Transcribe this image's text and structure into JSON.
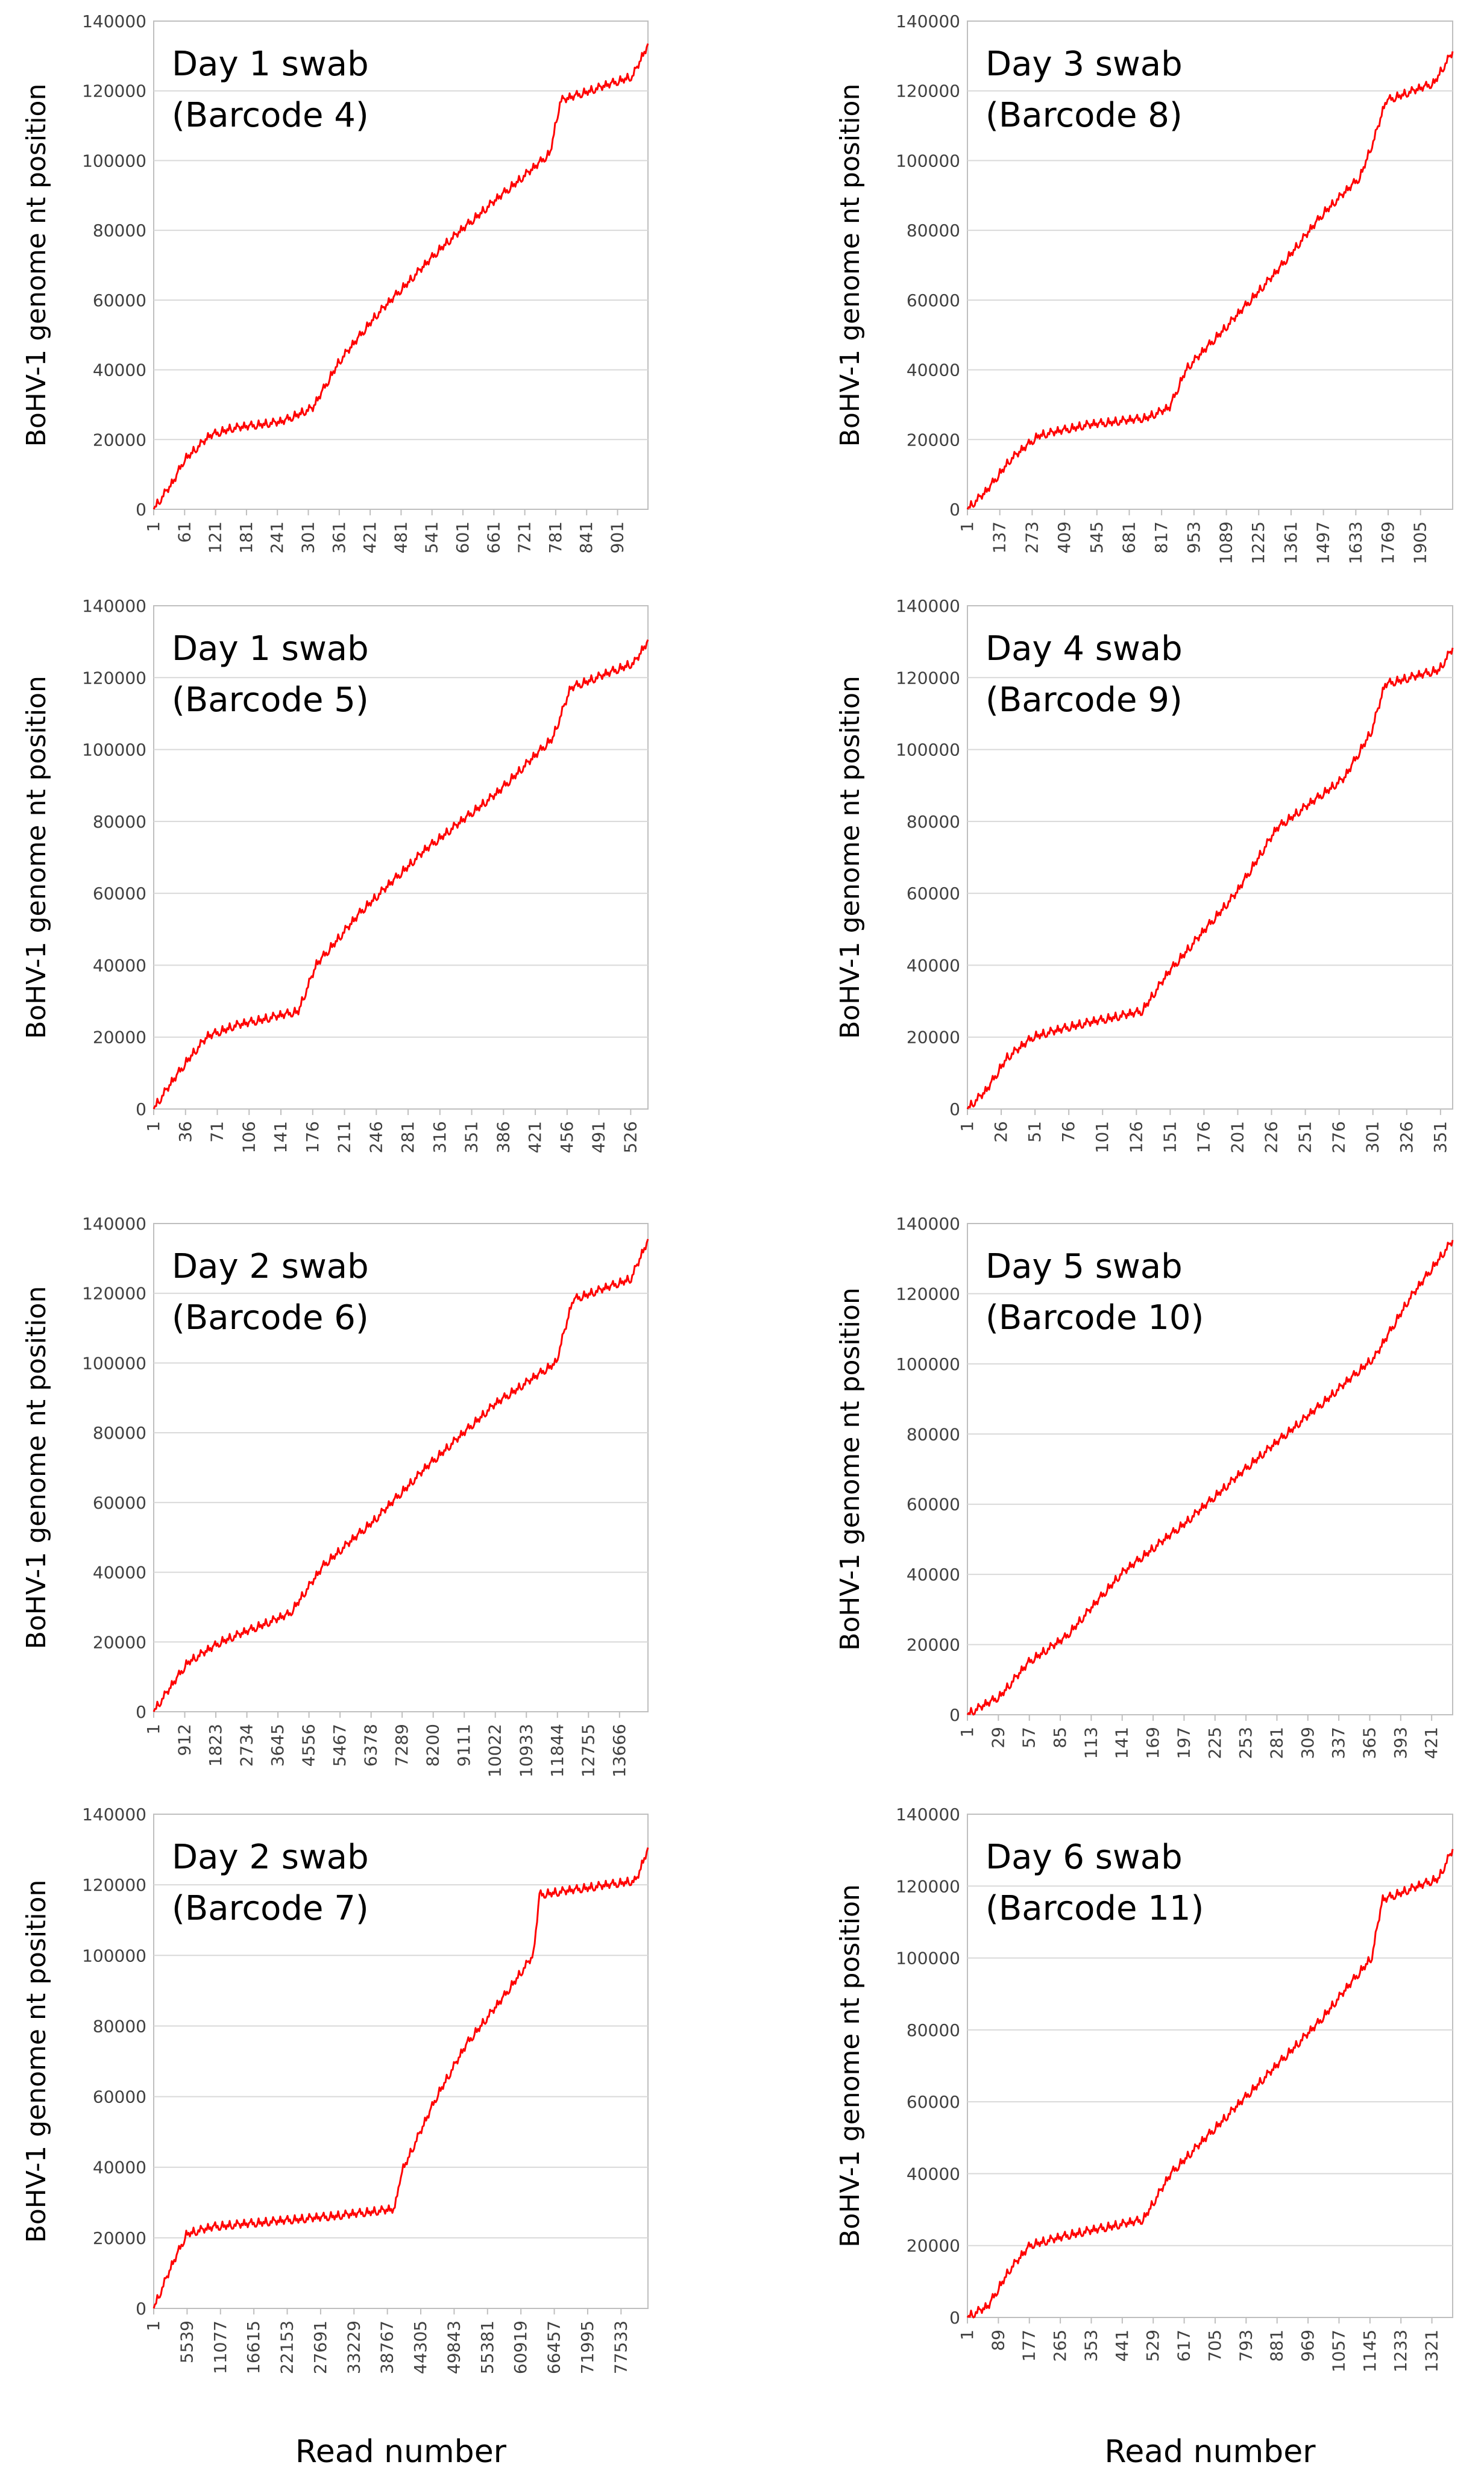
{
  "figure": {
    "x_axis_label": "Read number",
    "series_color": "#ff0000",
    "grid_color": "#d9d9d9",
    "axis_color": "#bfbfbf"
  },
  "chart_data": [
    {
      "type": "line",
      "title_line1": "Day 1 swab",
      "title_line2": "(Barcode 4)",
      "ylabel": "BoHV-1 genome  nt position",
      "xlabel": "",
      "ylim": [
        0,
        140000
      ],
      "yticks": [
        0,
        20000,
        40000,
        60000,
        80000,
        100000,
        120000,
        140000
      ],
      "xlim": [
        1,
        960
      ],
      "xticks": [
        1,
        61,
        121,
        181,
        241,
        301,
        361,
        421,
        481,
        541,
        601,
        661,
        721,
        781,
        841,
        901
      ],
      "grid": true,
      "series": [
        {
          "name": "Day 1 swab (Barcode 4)",
          "x": [
            1,
            40,
            60,
            110,
            150,
            250,
            310,
            360,
            430,
            560,
            660,
            740,
            770,
            790,
            930,
            960
          ],
          "y": [
            0,
            8000,
            14000,
            21000,
            23000,
            25000,
            29000,
            42000,
            55000,
            75000,
            88000,
            98000,
            102000,
            117000,
            124000,
            133000
          ]
        }
      ]
    },
    {
      "type": "line",
      "title_line1": "Day 3 swab",
      "title_line2": "(Barcode 8)",
      "ylabel": "BoHV-1 genome  nt position",
      "xlabel": "",
      "ylim": [
        0,
        140000
      ],
      "yticks": [
        0,
        20000,
        40000,
        60000,
        80000,
        100000,
        120000,
        140000
      ],
      "xlim": [
        1,
        2040
      ],
      "xticks": [
        1,
        137,
        273,
        409,
        545,
        681,
        817,
        953,
        1089,
        1225,
        1361,
        1497,
        1633,
        1769,
        1905
      ],
      "grid": true,
      "series": [
        {
          "name": "Day 3 swab (Barcode 8)",
          "x": [
            1,
            80,
            180,
            300,
            500,
            750,
            850,
            920,
            1100,
            1300,
            1500,
            1650,
            1710,
            1760,
            1960,
            2040
          ],
          "y": [
            0,
            5000,
            14000,
            21000,
            24000,
            26000,
            29000,
            40000,
            53000,
            68000,
            85000,
            95000,
            106000,
            117000,
            122000,
            131000
          ]
        }
      ]
    },
    {
      "type": "line",
      "title_line1": "Day 1 swab",
      "title_line2": "(Barcode 5)",
      "ylabel": "BoHV-1 genome  nt position",
      "xlabel": "",
      "ylim": [
        0,
        140000
      ],
      "yticks": [
        0,
        20000,
        40000,
        60000,
        80000,
        100000,
        120000,
        140000
      ],
      "xlim": [
        1,
        545
      ],
      "xticks": [
        1,
        36,
        71,
        106,
        141,
        176,
        211,
        246,
        281,
        316,
        351,
        386,
        421,
        456,
        491,
        526
      ],
      "grid": true,
      "series": [
        {
          "name": "Day 1 swab (Barcode 5)",
          "x": [
            1,
            20,
            40,
            60,
            90,
            160,
            180,
            230,
            300,
            380,
            440,
            460,
            530,
            545
          ],
          "y": [
            0,
            7000,
            14000,
            20000,
            23000,
            27000,
            40000,
            55000,
            72000,
            88000,
            103000,
            117000,
            124000,
            130000
          ]
        }
      ]
    },
    {
      "type": "line",
      "title_line1": "Day 4 swab",
      "title_line2": "(Barcode 9)",
      "ylabel": "BoHV-1 genome  nt position",
      "xlabel": "",
      "ylim": [
        0,
        140000
      ],
      "yticks": [
        0,
        20000,
        40000,
        60000,
        80000,
        100000,
        120000,
        140000
      ],
      "xlim": [
        1,
        360
      ],
      "xticks": [
        1,
        26,
        51,
        76,
        101,
        126,
        151,
        176,
        201,
        226,
        251,
        276,
        301,
        326,
        351
      ],
      "grid": true,
      "series": [
        {
          "name": "Day 4 swab (Barcode 9)",
          "x": [
            1,
            15,
            30,
            50,
            80,
            130,
            150,
            200,
            230,
            280,
            300,
            310,
            350,
            360
          ],
          "y": [
            0,
            5000,
            14000,
            20000,
            23000,
            27000,
            38000,
            60000,
            78000,
            92000,
            105000,
            118000,
            122000,
            128000
          ]
        }
      ]
    },
    {
      "type": "line",
      "title_line1": "Day 2 swab",
      "title_line2": "(Barcode 6)",
      "ylabel": "BoHV-1 genome  nt position",
      "xlabel": "",
      "ylim": [
        0,
        140000
      ],
      "yticks": [
        0,
        20000,
        40000,
        60000,
        80000,
        100000,
        120000,
        140000
      ],
      "xlim": [
        1,
        14500
      ],
      "xticks": [
        1,
        912,
        1823,
        2734,
        3645,
        4556,
        5467,
        6378,
        7289,
        8200,
        9111,
        10022,
        10933,
        11844,
        12755,
        13666
      ],
      "grid": true,
      "series": [
        {
          "name": "Day 2 swab (Barcode 6)",
          "x": [
            1,
            1000,
            2000,
            3000,
            4000,
            5000,
            6500,
            8000,
            10000,
            11800,
            12300,
            14000,
            14500
          ],
          "y": [
            0,
            14000,
            20000,
            24000,
            28000,
            42000,
            55000,
            70000,
            88000,
            100000,
            118000,
            124000,
            135000
          ]
        }
      ]
    },
    {
      "type": "line",
      "title_line1": "Day 5 swab",
      "title_line2": "(Barcode 10)",
      "ylabel": "BoHV-1 genome  nt position",
      "xlabel": "",
      "ylim": [
        0,
        140000
      ],
      "yticks": [
        0,
        20000,
        40000,
        60000,
        80000,
        100000,
        120000,
        140000
      ],
      "xlim": [
        1,
        440
      ],
      "xticks": [
        1,
        29,
        57,
        85,
        113,
        141,
        169,
        197,
        225,
        253,
        281,
        309,
        337,
        365,
        393,
        421
      ],
      "grid": true,
      "series": [
        {
          "name": "Day 5 swab (Barcode 10)",
          "x": [
            1,
            30,
            57,
            90,
            140,
            200,
            260,
            320,
            370,
            400,
            440
          ],
          "y": [
            0,
            5000,
            15000,
            22000,
            40000,
            55000,
            72000,
            88000,
            102000,
            118000,
            135000
          ]
        }
      ]
    },
    {
      "type": "line",
      "title_line1": "Day 2 swab",
      "title_line2": "(Barcode 7)",
      "ylabel": "BoHV-1 genome  nt position",
      "xlabel": "Read number",
      "ylim": [
        0,
        140000
      ],
      "yticks": [
        0,
        20000,
        40000,
        60000,
        80000,
        100000,
        120000,
        140000
      ],
      "xlim": [
        1,
        82000
      ],
      "xticks": [
        1,
        5539,
        11077,
        16615,
        22153,
        27691,
        33229,
        38767,
        44305,
        49843,
        55381,
        60919,
        66457,
        71995,
        77533
      ],
      "grid": true,
      "series": [
        {
          "name": "Day 2 swab (Barcode 7)",
          "x": [
            1,
            3000,
            5500,
            10000,
            20000,
            30000,
            40000,
            41000,
            47000,
            52000,
            58000,
            63000,
            64000,
            72000,
            80000,
            82000
          ],
          "y": [
            0,
            12000,
            21000,
            23000,
            24500,
            26000,
            28000,
            38000,
            60000,
            75000,
            88000,
            100000,
            117000,
            119000,
            121000,
            130000
          ]
        }
      ]
    },
    {
      "type": "line",
      "title_line1": "Day 6 swab",
      "title_line2": "(Barcode 11)",
      "ylabel": "BoHV-1 genome  nt position",
      "xlabel": "Read number",
      "ylim": [
        0,
        140000
      ],
      "yticks": [
        0,
        20000,
        40000,
        60000,
        80000,
        100000,
        120000,
        140000
      ],
      "xlim": [
        1,
        1380
      ],
      "xticks": [
        1,
        89,
        177,
        265,
        353,
        441,
        529,
        617,
        705,
        793,
        881,
        969,
        1057,
        1145,
        1233,
        1321
      ],
      "grid": true,
      "series": [
        {
          "name": "Day 6 swab (Barcode 11)",
          "x": [
            1,
            60,
            120,
            180,
            300,
            500,
            580,
            800,
            1000,
            1150,
            1180,
            1340,
            1380
          ],
          "y": [
            0,
            3000,
            13000,
            20000,
            23000,
            27000,
            40000,
            62000,
            82000,
            100000,
            116000,
            122000,
            130000
          ]
        }
      ]
    }
  ]
}
